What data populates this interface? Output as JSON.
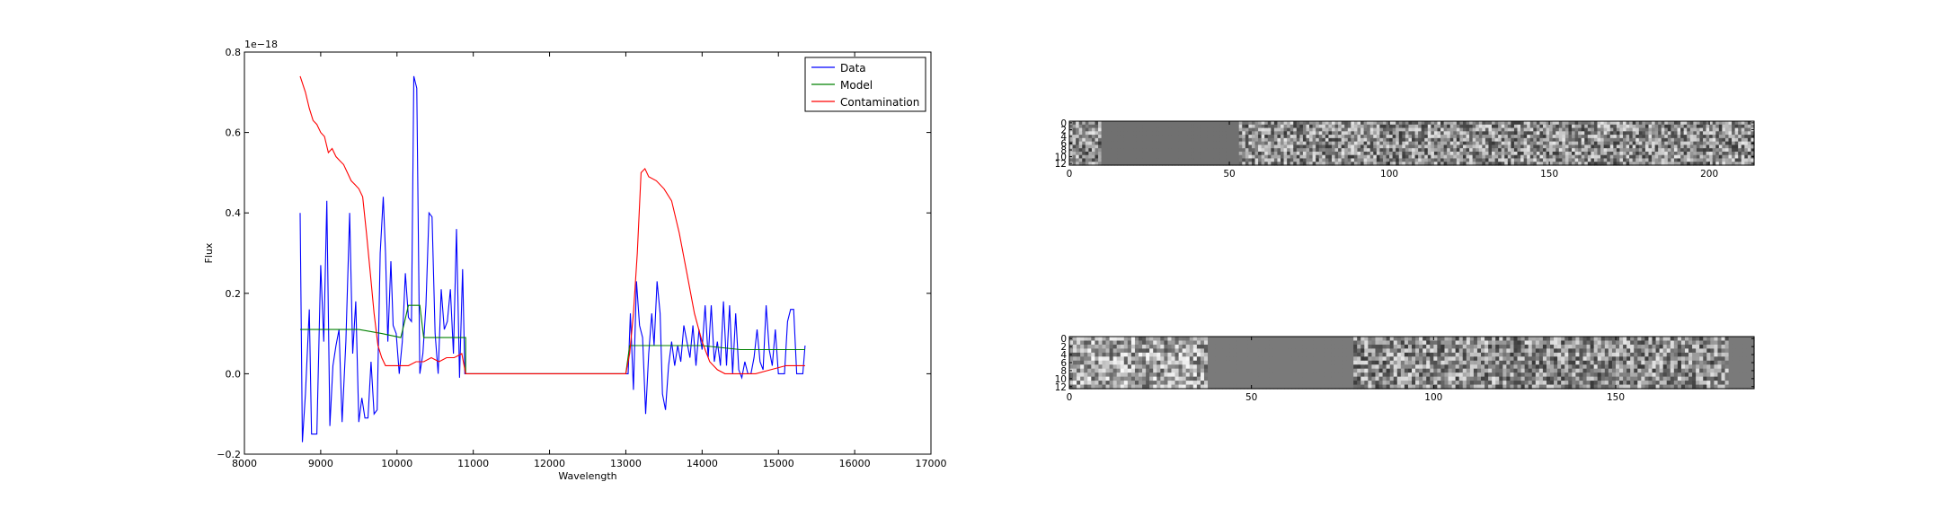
{
  "chart_data": [
    {
      "type": "line",
      "xlabel": "Wavelength",
      "ylabel": "Flux",
      "offset_text": "1e−18",
      "xlim": [
        8000,
        17000
      ],
      "ylim": [
        -0.2,
        0.8
      ],
      "xticks": [
        8000,
        9000,
        10000,
        11000,
        12000,
        13000,
        14000,
        15000,
        16000,
        17000
      ],
      "yticks": [
        -0.2,
        0.0,
        0.2,
        0.4,
        0.6,
        0.8
      ],
      "xtick_labels": [
        "8000",
        "9000",
        "10000",
        "11000",
        "12000",
        "13000",
        "14000",
        "15000",
        "16000",
        "17000"
      ],
      "ytick_labels": [
        "−0.2",
        "0.0",
        "0.2",
        "0.4",
        "0.6",
        "0.8"
      ],
      "grid": false,
      "legend_position": "top-right",
      "series": [
        {
          "name": "Data",
          "color": "#0000ff",
          "points": [
            [
              8730,
              0.4
            ],
            [
              8760,
              -0.17
            ],
            [
              8800,
              -0.05
            ],
            [
              8850,
              0.16
            ],
            [
              8880,
              -0.15
            ],
            [
              8950,
              -0.15
            ],
            [
              9000,
              0.27
            ],
            [
              9040,
              0.08
            ],
            [
              9080,
              0.43
            ],
            [
              9120,
              -0.13
            ],
            [
              9160,
              0.02
            ],
            [
              9200,
              0.07
            ],
            [
              9240,
              0.11
            ],
            [
              9280,
              -0.12
            ],
            [
              9330,
              0.08
            ],
            [
              9380,
              0.4
            ],
            [
              9420,
              0.05
            ],
            [
              9460,
              0.18
            ],
            [
              9500,
              -0.12
            ],
            [
              9540,
              -0.06
            ],
            [
              9580,
              -0.11
            ],
            [
              9620,
              -0.11
            ],
            [
              9660,
              0.03
            ],
            [
              9700,
              -0.1
            ],
            [
              9740,
              -0.09
            ],
            [
              9780,
              0.3
            ],
            [
              9820,
              0.44
            ],
            [
              9850,
              0.3
            ],
            [
              9880,
              0.08
            ],
            [
              9920,
              0.28
            ],
            [
              9950,
              0.12
            ],
            [
              9990,
              0.1
            ],
            [
              10030,
              0.0
            ],
            [
              10070,
              0.08
            ],
            [
              10110,
              0.25
            ],
            [
              10150,
              0.14
            ],
            [
              10190,
              0.13
            ],
            [
              10220,
              0.74
            ],
            [
              10260,
              0.71
            ],
            [
              10300,
              0.0
            ],
            [
              10340,
              0.05
            ],
            [
              10380,
              0.17
            ],
            [
              10420,
              0.4
            ],
            [
              10460,
              0.39
            ],
            [
              10500,
              0.1
            ],
            [
              10540,
              0.0
            ],
            [
              10580,
              0.21
            ],
            [
              10620,
              0.11
            ],
            [
              10660,
              0.13
            ],
            [
              10700,
              0.21
            ],
            [
              10740,
              0.05
            ],
            [
              10780,
              0.36
            ],
            [
              10820,
              -0.01
            ],
            [
              10860,
              0.26
            ],
            [
              10890,
              0.0
            ],
            [
              13030,
              0.0
            ],
            [
              13060,
              0.15
            ],
            [
              13100,
              -0.04
            ],
            [
              13140,
              0.23
            ],
            [
              13180,
              0.12
            ],
            [
              13220,
              0.09
            ],
            [
              13260,
              -0.1
            ],
            [
              13300,
              0.05
            ],
            [
              13340,
              0.15
            ],
            [
              13370,
              0.07
            ],
            [
              13410,
              0.23
            ],
            [
              13450,
              0.15
            ],
            [
              13480,
              -0.05
            ],
            [
              13520,
              -0.09
            ],
            [
              13560,
              0.02
            ],
            [
              13600,
              0.08
            ],
            [
              13640,
              0.02
            ],
            [
              13680,
              0.07
            ],
            [
              13720,
              0.03
            ],
            [
              13760,
              0.12
            ],
            [
              13800,
              0.08
            ],
            [
              13840,
              0.04
            ],
            [
              13880,
              0.12
            ],
            [
              13920,
              0.02
            ],
            [
              13960,
              0.11
            ],
            [
              14000,
              0.06
            ],
            [
              14040,
              0.17
            ],
            [
              14080,
              0.04
            ],
            [
              14120,
              0.17
            ],
            [
              14160,
              0.03
            ],
            [
              14200,
              0.08
            ],
            [
              14240,
              0.02
            ],
            [
              14280,
              0.18
            ],
            [
              14320,
              0.02
            ],
            [
              14360,
              0.17
            ],
            [
              14400,
              0.0
            ],
            [
              14440,
              0.15
            ],
            [
              14480,
              0.01
            ],
            [
              14520,
              -0.01
            ],
            [
              14560,
              0.03
            ],
            [
              14600,
              0.0
            ],
            [
              14640,
              0.0
            ],
            [
              14680,
              0.04
            ],
            [
              14720,
              0.11
            ],
            [
              14760,
              0.03
            ],
            [
              14800,
              0.01
            ],
            [
              14840,
              0.17
            ],
            [
              14880,
              0.06
            ],
            [
              14920,
              0.02
            ],
            [
              14960,
              0.11
            ],
            [
              15000,
              0.0
            ],
            [
              15040,
              0.0
            ],
            [
              15080,
              0.0
            ],
            [
              15120,
              0.13
            ],
            [
              15160,
              0.16
            ],
            [
              15200,
              0.16
            ],
            [
              15240,
              0.0
            ],
            [
              15280,
              0.0
            ],
            [
              15320,
              0.0
            ],
            [
              15350,
              0.07
            ]
          ]
        },
        {
          "name": "Model",
          "color": "#008000",
          "points": [
            [
              8730,
              0.11
            ],
            [
              9000,
              0.11
            ],
            [
              9500,
              0.11
            ],
            [
              9800,
              0.1
            ],
            [
              10050,
              0.09
            ],
            [
              10100,
              0.13
            ],
            [
              10150,
              0.17
            ],
            [
              10300,
              0.17
            ],
            [
              10350,
              0.09
            ],
            [
              10900,
              0.09
            ],
            [
              10900,
              0.0
            ],
            [
              13000,
              0.0
            ],
            [
              13050,
              0.07
            ],
            [
              13500,
              0.07
            ],
            [
              13650,
              0.07
            ],
            [
              13800,
              0.07
            ],
            [
              14000,
              0.07
            ],
            [
              14500,
              0.06
            ],
            [
              15000,
              0.06
            ],
            [
              15350,
              0.06
            ]
          ]
        },
        {
          "name": "Contamination",
          "color": "#ff0000",
          "points": [
            [
              8730,
              0.74
            ],
            [
              8800,
              0.7
            ],
            [
              8850,
              0.66
            ],
            [
              8900,
              0.63
            ],
            [
              8950,
              0.62
            ],
            [
              9000,
              0.6
            ],
            [
              9050,
              0.59
            ],
            [
              9100,
              0.55
            ],
            [
              9150,
              0.56
            ],
            [
              9200,
              0.54
            ],
            [
              9250,
              0.53
            ],
            [
              9300,
              0.52
            ],
            [
              9350,
              0.5
            ],
            [
              9400,
              0.48
            ],
            [
              9450,
              0.47
            ],
            [
              9500,
              0.46
            ],
            [
              9550,
              0.44
            ],
            [
              9600,
              0.35
            ],
            [
              9650,
              0.25
            ],
            [
              9700,
              0.15
            ],
            [
              9750,
              0.07
            ],
            [
              9800,
              0.04
            ],
            [
              9850,
              0.02
            ],
            [
              9950,
              0.02
            ],
            [
              10050,
              0.02
            ],
            [
              10150,
              0.02
            ],
            [
              10250,
              0.03
            ],
            [
              10350,
              0.03
            ],
            [
              10450,
              0.04
            ],
            [
              10550,
              0.03
            ],
            [
              10650,
              0.04
            ],
            [
              10750,
              0.04
            ],
            [
              10850,
              0.05
            ],
            [
              10900,
              0.0
            ],
            [
              13000,
              0.0
            ],
            [
              13050,
              0.05
            ],
            [
              13100,
              0.15
            ],
            [
              13150,
              0.3
            ],
            [
              13200,
              0.5
            ],
            [
              13250,
              0.51
            ],
            [
              13300,
              0.49
            ],
            [
              13400,
              0.48
            ],
            [
              13500,
              0.46
            ],
            [
              13600,
              0.43
            ],
            [
              13700,
              0.35
            ],
            [
              13800,
              0.25
            ],
            [
              13900,
              0.15
            ],
            [
              14000,
              0.08
            ],
            [
              14100,
              0.03
            ],
            [
              14200,
              0.01
            ],
            [
              14300,
              0.0
            ],
            [
              14500,
              0.0
            ],
            [
              14700,
              0.0
            ],
            [
              14900,
              0.01
            ],
            [
              15100,
              0.02
            ],
            [
              15350,
              0.02
            ]
          ]
        }
      ]
    },
    {
      "type": "heatmap",
      "xlim": [
        0,
        214
      ],
      "ylim": [
        13,
        0
      ],
      "xticks": [
        0,
        50,
        100,
        150,
        200
      ],
      "yticks": [
        0,
        2,
        4,
        6,
        8,
        10,
        12
      ],
      "xtick_labels": [
        "0",
        "50",
        "100",
        "150",
        "200"
      ],
      "ytick_labels": [
        "0",
        "2",
        "4",
        "6",
        "8",
        "10",
        "12"
      ],
      "colormap": "gray",
      "flat_ranges": [
        [
          10,
          53
        ]
      ]
    },
    {
      "type": "heatmap",
      "xlim": [
        0,
        188
      ],
      "ylim": [
        13,
        0
      ],
      "xticks": [
        0,
        50,
        100,
        150
      ],
      "yticks": [
        0,
        2,
        4,
        6,
        8,
        10,
        12
      ],
      "xtick_labels": [
        "0",
        "50",
        "100",
        "150"
      ],
      "ytick_labels": [
        "0",
        "2",
        "4",
        "6",
        "8",
        "10",
        "12"
      ],
      "colormap": "gray",
      "flat_ranges": [
        [
          38,
          78
        ],
        [
          181,
          188
        ]
      ]
    }
  ]
}
